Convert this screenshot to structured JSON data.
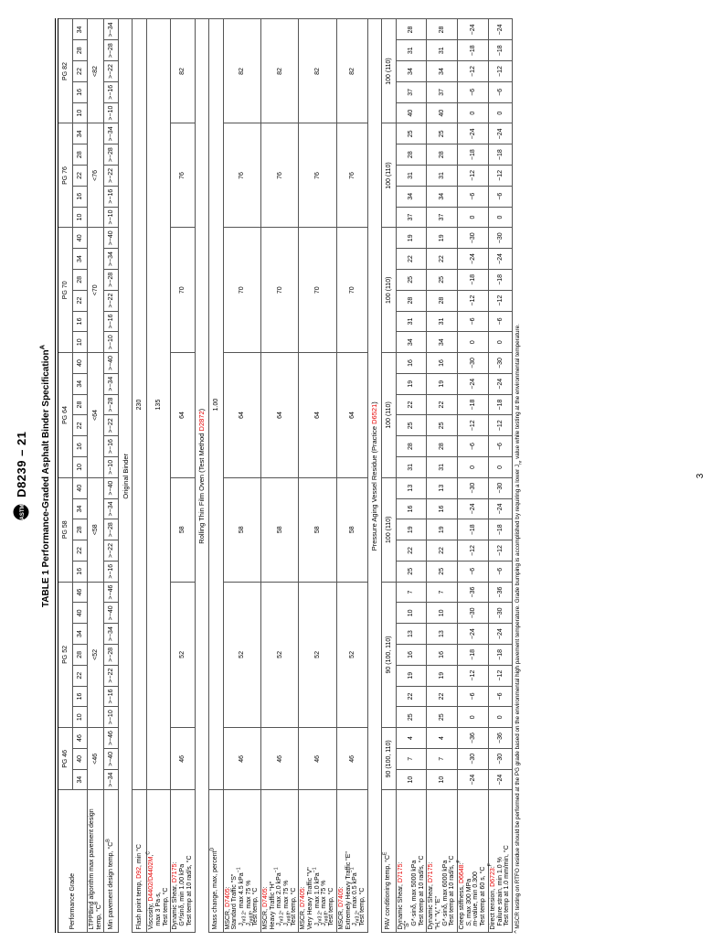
{
  "standard_header": "D8239 – 21",
  "table_title": "TABLE 1 Performance-Graded Asphalt Binder Specification",
  "table_title_sup": "A",
  "page_number": "3",
  "pg_groups": [
    {
      "label": "PG 46",
      "cols": [
        "34",
        "40",
        "46"
      ],
      "max_design": "<46",
      "min_design": [
        ">−34",
        ">−40",
        ">−46"
      ]
    },
    {
      "label": "PG 52",
      "cols": [
        "10",
        "16",
        "22",
        "28",
        "34",
        "40",
        "46"
      ],
      "max_design": "<52",
      "min_design": [
        ">−10",
        ">−16",
        ">−22",
        ">−28",
        ">−34",
        ">−40",
        ">−46"
      ]
    },
    {
      "label": "PG 58",
      "cols": [
        "16",
        "22",
        "28",
        "34",
        "40"
      ],
      "max_design": "<58",
      "min_design": [
        ">−16",
        ">−22",
        ">−28",
        ">−34",
        ">−40"
      ]
    },
    {
      "label": "PG 64",
      "cols": [
        "10",
        "16",
        "22",
        "28",
        "34",
        "40"
      ],
      "max_design": "<64",
      "min_design": [
        ">−10",
        ">−16",
        ">−22",
        ">−28",
        ">−34",
        ">−40"
      ]
    },
    {
      "label": "PG 70",
      "cols": [
        "10",
        "16",
        "22",
        "28",
        "34",
        "40"
      ],
      "max_design": "<70",
      "min_design": [
        ">−10",
        ">−16",
        ">−22",
        ">−28",
        ">−34",
        ">−40"
      ]
    },
    {
      "label": "PG 76",
      "cols": [
        "10",
        "16",
        "22",
        "28",
        "34"
      ],
      "max_design": "<76",
      "min_design": [
        ">−10",
        ">−16",
        ">−22",
        ">−28",
        ">−34"
      ]
    },
    {
      "label": "PG 82",
      "cols": [
        "10",
        "16",
        "22",
        "28",
        "34"
      ],
      "max_design": "<82",
      "min_design": [
        ">−10",
        ">−16",
        ">−22",
        ">−28",
        ">−34"
      ]
    }
  ],
  "labels": {
    "perf_grade": "Performance Grade",
    "ltppbind": "LTPPBind algorithm max pavement design temp, °C<sup>B</sup>",
    "min_design": "Min pavement design temp, °C<sup>B</sup>",
    "section_original": "Original Binder",
    "flash": "Flash point temp, <span class='red'>D92</span>, min °C",
    "viscosity": "Viscosity, <span class='red'>D4402/D4402M</span>,<sup>C</sup><br>&nbsp;&nbsp;max 3 Pa·s,<br>&nbsp;&nbsp;Test temp, °C",
    "dynshear_orig": "Dynamic Shear, <span class='red'>D7175</span>:<br>&nbsp;&nbsp;G*/sinδ, min 1.00 kPa<br>&nbsp;&nbsp;Test temp at 10 rad/s, °C",
    "section_rtfo": "Rolling Thin Film Oven (Test Method <span class='red'>D2872</span>)",
    "mass": "Mass change, max, percent<sup>D</sup>",
    "mscr_s": "MSCR, <span class='red'>D7405</span>:<br>Standard Traffic \"S\"<br>&nbsp;&nbsp;J<sub>nr3.2</sub>, max 4.5 kPa<sup>−1</sup><br>&nbsp;&nbsp;J<sub>nrdiff</sub>, max 75 %<br>&nbsp;&nbsp;Test temp, °C",
    "mscr_h": "MSCR, <span class='red'>D7405</span>:<br>Heavy Traffic \"H\"<br>&nbsp;&nbsp;J<sub>nr3.2</sub>, max 2.0 kPa<sup>−1</sup><br>&nbsp;&nbsp;J<sub>nrdiff</sub>, max 75 %<br>&nbsp;&nbsp;Test temp, °C",
    "mscr_v": "MSCR, <span class='red'>D7405</span>:<br>Very Heavy Traffic \"V\"<br>&nbsp;&nbsp;J<sub>nr3.2</sub>, max 1.0 kPa<sup>−1</sup><br>&nbsp;&nbsp;J<sub>nrdiff</sub>, max 75 %<br>&nbsp;&nbsp;Test temp, °C",
    "mscr_e": "MSCR, <span class='red'>D7405</span>:<br>Extremely Heavy Traffic \"E\"<br>&nbsp;&nbsp;J<sub>nr3.2</sub>, max 0.5 kPa<sup>−1</sup><br>&nbsp;&nbsp;Test temp, °C",
    "section_pav": "Pressure Aging Vessel Residue (Practice <span class='red'>D6521</span>)",
    "pav_temp": "PAV conditioning temp, °C<sup>E</sup>",
    "pav_vals": [
      "90 (100, 110)",
      "90 (100, 110)",
      "100 (110)",
      "100 (110)",
      "100 (110)",
      "100 (110)",
      "100 (110)"
    ],
    "dynshear_s": "Dynamic Shear, <span class='red'>D7175</span>:<br>\"S\"<br>&nbsp;&nbsp;G*·sinδ, max 5000 kPa<br>&nbsp;&nbsp;Test temp at 10 rad/s, °C",
    "dynshear_hve": "Dynamic Shear, <span class='red'>D7175</span>:<br>\"H,\" \"V,\" \"E\"<br>&nbsp;&nbsp;G*·sinδ, max 6000 kPa<br>&nbsp;&nbsp;Test temp at 10 rad/s, °C",
    "creep": "Creep stiffness, <span class='red'>D6648</span>:<sup>F</sup><br>&nbsp;&nbsp;<i>S</i>, max 300 MPa<br>&nbsp;&nbsp;<i>m</i>-value, min 0.300<br>&nbsp;&nbsp;Test temp at 60 s, °C",
    "direct": "Direct tension, <span class='red'>D6723</span>:<sup>F</sup><br>&nbsp;&nbsp;Failure strain, min 1.0 %<br>&nbsp;&nbsp;Test temp at 1.0 mm/min, °C"
  },
  "flash_val": "230",
  "viscosity_val": "135",
  "mass_val": "1.00",
  "hightemp_vals": [
    "46",
    "52",
    "58",
    "64",
    "70",
    "76",
    "82"
  ],
  "pav_s_rows": [
    [
      "10",
      "7",
      "4"
    ],
    [
      "25",
      "22",
      "19",
      "16",
      "13",
      "10",
      "7"
    ],
    [
      "25",
      "22",
      "19",
      "16",
      "13"
    ],
    [
      "31",
      "28",
      "25",
      "22",
      "19",
      "16"
    ],
    [
      "34",
      "31",
      "28",
      "25",
      "22",
      "19"
    ],
    [
      "37",
      "34",
      "31",
      "28",
      "25"
    ],
    [
      "40",
      "37",
      "34",
      "31",
      "28"
    ]
  ],
  "creep_rows": [
    [
      "−24",
      "−30",
      "−36"
    ],
    [
      "0",
      "−6",
      "−12",
      "−18",
      "−24",
      "−30",
      "−36"
    ],
    [
      "−6",
      "−12",
      "−18",
      "−24",
      "−30"
    ],
    [
      "0",
      "−6",
      "−12",
      "−18",
      "−24",
      "−30"
    ],
    [
      "0",
      "−6",
      "−12",
      "−18",
      "−24",
      "−30"
    ],
    [
      "0",
      "−6",
      "−12",
      "−18",
      "−24"
    ],
    [
      "0",
      "−6",
      "−12",
      "−18",
      "−24"
    ]
  ],
  "footnote": "<sup>A</sup> MSCR testing on RTFO residue should be performed at the PG grade based on the environmental high pavement temperature. Grade bumping is accomplished by requiring a lower J<sub>nr</sub> value while testing at the environmental temperature."
}
